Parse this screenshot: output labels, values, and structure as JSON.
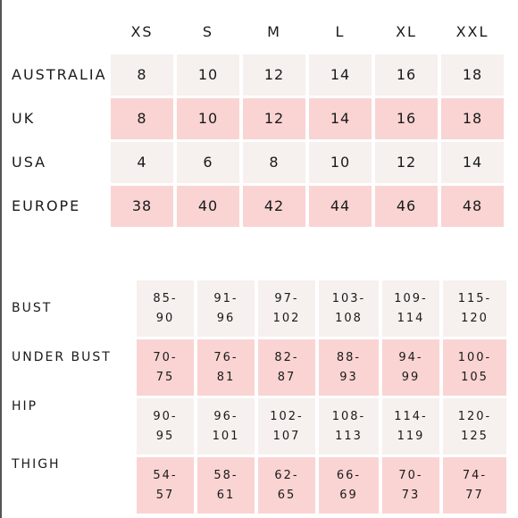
{
  "sizes": [
    "XS",
    "S",
    "M",
    "L",
    "XL",
    "XXL"
  ],
  "conversion_rows": [
    {
      "label": "AUSTRALIA",
      "values": [
        "8",
        "10",
        "12",
        "14",
        "16",
        "18"
      ],
      "tone": "light"
    },
    {
      "label": "UK",
      "values": [
        "8",
        "10",
        "12",
        "14",
        "16",
        "18"
      ],
      "tone": "pink"
    },
    {
      "label": "USA",
      "values": [
        "4",
        "6",
        "8",
        "10",
        "12",
        "14"
      ],
      "tone": "light"
    },
    {
      "label": "EUROPE",
      "values": [
        "38",
        "40",
        "42",
        "44",
        "46",
        "48"
      ],
      "tone": "pink"
    }
  ],
  "measurement_rows": [
    {
      "label": "BUST",
      "tone": "light",
      "values": [
        {
          "top": "85-",
          "bottom": "90"
        },
        {
          "top": "91-",
          "bottom": "96"
        },
        {
          "top": "97-",
          "bottom": "102"
        },
        {
          "top": "103-",
          "bottom": "108"
        },
        {
          "top": "109-",
          "bottom": "114"
        },
        {
          "top": "115-",
          "bottom": "120"
        }
      ]
    },
    {
      "label": "UNDER BUST",
      "tone": "pink",
      "values": [
        {
          "top": "70-",
          "bottom": "75"
        },
        {
          "top": "76-",
          "bottom": "81"
        },
        {
          "top": "82-",
          "bottom": "87"
        },
        {
          "top": "88-",
          "bottom": "93"
        },
        {
          "top": "94-",
          "bottom": "99"
        },
        {
          "top": "100-",
          "bottom": "105"
        }
      ]
    },
    {
      "label": "HIP",
      "tone": "light",
      "values": [
        {
          "top": "90-",
          "bottom": "95"
        },
        {
          "top": "96-",
          "bottom": "101"
        },
        {
          "top": "102-",
          "bottom": "107"
        },
        {
          "top": "108-",
          "bottom": "113"
        },
        {
          "top": "114-",
          "bottom": "119"
        },
        {
          "top": "120-",
          "bottom": "125"
        }
      ]
    },
    {
      "label": "THIGH",
      "tone": "pink",
      "values": [
        {
          "top": "54-",
          "bottom": "57"
        },
        {
          "top": "58-",
          "bottom": "61"
        },
        {
          "top": "62-",
          "bottom": "65"
        },
        {
          "top": "66-",
          "bottom": "69"
        },
        {
          "top": "70-",
          "bottom": "73"
        },
        {
          "top": "74-",
          "bottom": "77"
        }
      ]
    }
  ]
}
